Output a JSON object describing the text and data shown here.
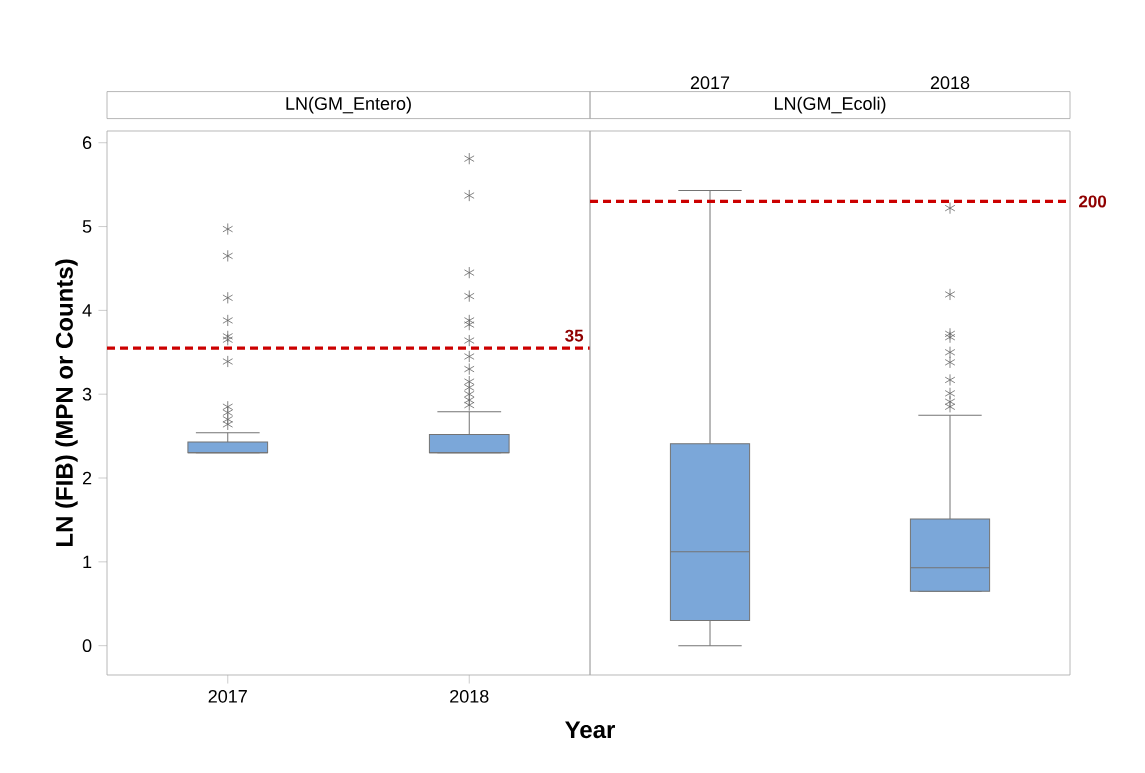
{
  "chart_data": [
    {
      "type": "box",
      "title": "LN(GM_Entero)",
      "xlabel": "Year",
      "ylabel": "LN (FIB) (MPN or Counts)",
      "categories": [
        "2017",
        "2018"
      ],
      "series": [
        {
          "color": "#7ba7d9",
          "boxes": [
            {
              "low": 2.3,
              "q1": 2.3,
              "median": 2.3,
              "q3": 2.43,
              "high": 2.54,
              "outliers": [
                4.97,
                4.65,
                4.15,
                3.88,
                3.69,
                3.65,
                3.39,
                2.85,
                2.78,
                2.7,
                2.64
              ]
            },
            {
              "low": 2.3,
              "q1": 2.3,
              "median": 2.3,
              "q3": 2.52,
              "high": 2.79,
              "outliers": [
                5.81,
                5.37,
                4.45,
                4.17,
                3.88,
                3.83,
                3.64,
                3.45,
                3.3,
                3.15,
                3.08,
                3.0,
                2.93,
                2.87
              ]
            }
          ]
        }
      ],
      "ylim": [
        -0.35,
        6.14
      ],
      "yticks": [
        0,
        1,
        2,
        3,
        4,
        5,
        6
      ],
      "ref_lines": [
        {
          "axis": "y",
          "value": 3.55,
          "color": "#cc0000",
          "line_style": "dashed"
        }
      ],
      "annotations": [
        "35"
      ],
      "marker": "star"
    },
    {
      "type": "box",
      "title": "LN(GM_Ecoli)",
      "categories": [
        "2017",
        "2018"
      ],
      "series": [
        {
          "color": "#7ba7d9",
          "boxes": [
            {
              "low": 0,
              "q1": 0.3,
              "median": 1.12,
              "q3": 2.41,
              "high": 5.43
            },
            {
              "low": 0.65,
              "q1": 0.65,
              "median": 0.93,
              "q3": 1.51,
              "high": 2.75,
              "outliers": [
                5.22,
                4.19,
                3.72,
                3.68,
                3.5,
                3.38,
                3.17,
                3.01,
                2.91,
                2.85
              ]
            }
          ]
        }
      ],
      "ylim": [
        -0.35,
        6.14
      ],
      "tick_labels": "x",
      "ref_lines": [
        {
          "axis": "y",
          "value": 5.3,
          "color": "#cc0000",
          "line_style": "dashed"
        }
      ],
      "annotations": [
        "200"
      ],
      "marker": "star"
    }
  ]
}
